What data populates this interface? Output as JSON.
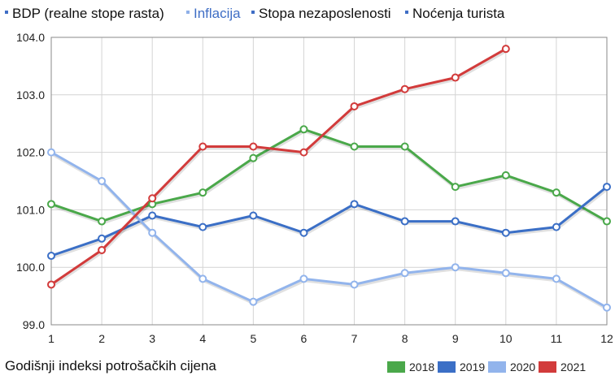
{
  "tabs": [
    {
      "label": "BDP (realne stope rasta)",
      "active": false
    },
    {
      "label": "Inflacija",
      "active": true
    },
    {
      "label": "Stopa nezaposlenosti",
      "active": false
    },
    {
      "label": "Noćenja turista",
      "active": false
    }
  ],
  "caption": "Godišnji indeksi potrošačkih cijena",
  "chart_data": {
    "type": "line",
    "x": [
      1,
      2,
      3,
      4,
      5,
      6,
      7,
      8,
      9,
      10,
      11,
      12
    ],
    "ylim": [
      99.0,
      104.0
    ],
    "yticks": [
      "99.0",
      "100.0",
      "101.0",
      "102.0",
      "103.0",
      "104.0"
    ],
    "xticks": [
      "1",
      "2",
      "3",
      "4",
      "5",
      "6",
      "7",
      "8",
      "9",
      "10",
      "11",
      "12"
    ],
    "grid": true,
    "legend": "bottom-right",
    "series": [
      {
        "name": "2018",
        "color": "#4aa84a",
        "values": [
          101.1,
          100.8,
          101.1,
          101.3,
          101.9,
          102.4,
          102.1,
          102.1,
          101.4,
          101.6,
          101.3,
          100.8
        ]
      },
      {
        "name": "2019",
        "color": "#3b6fc6",
        "values": [
          100.2,
          100.5,
          100.9,
          100.7,
          100.9,
          100.6,
          101.1,
          100.8,
          100.8,
          100.6,
          100.7,
          101.4
        ]
      },
      {
        "name": "2020",
        "color": "#92b4ec",
        "values": [
          102.0,
          101.5,
          100.6,
          99.8,
          99.4,
          99.8,
          99.7,
          99.9,
          100.0,
          99.9,
          99.8,
          99.3
        ]
      },
      {
        "name": "2021",
        "color": "#d23b3b",
        "values": [
          99.7,
          100.3,
          101.2,
          102.1,
          102.1,
          102.0,
          102.8,
          103.1,
          103.3,
          103.8,
          null,
          null
        ]
      }
    ]
  }
}
